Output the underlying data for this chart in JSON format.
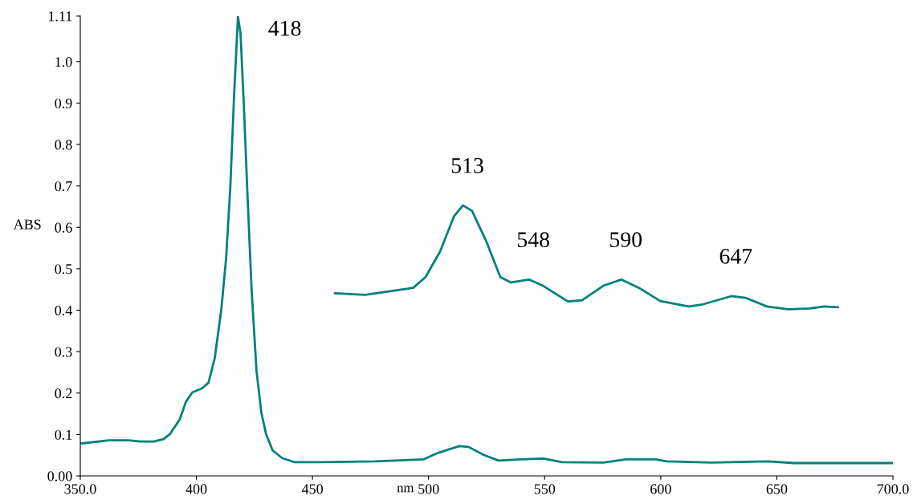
{
  "chart_data": {
    "type": "line",
    "xlabel": "nm",
    "ylabel": "ABS",
    "xlim": [
      350,
      700
    ],
    "ylim": [
      0,
      1.11
    ],
    "xticks": [
      {
        "value": 350,
        "label": "350.0"
      },
      400,
      450,
      500,
      550,
      600,
      650,
      {
        "value": 700,
        "label": "700.0"
      }
    ],
    "yticks": [
      {
        "value": 0,
        "label": "0.00"
      },
      {
        "value": 0.1,
        "label": "0.1"
      },
      {
        "value": 0.2,
        "label": "0.2"
      },
      {
        "value": 0.3,
        "label": "0.3"
      },
      {
        "value": 0.4,
        "label": "0.4"
      },
      {
        "value": 0.5,
        "label": "0.5"
      },
      {
        "value": 0.6,
        "label": "0.6"
      },
      {
        "value": 0.7,
        "label": "0.7"
      },
      {
        "value": 0.8,
        "label": "0.8"
      },
      {
        "value": 0.9,
        "label": "0.9"
      },
      {
        "value": 1.0,
        "label": "1.0"
      },
      {
        "value": 1.11,
        "label": "1.11"
      }
    ],
    "grid": false,
    "marker": "none",
    "line_style": "solid",
    "series": [
      {
        "color": "#008080",
        "x": [
          350,
          362.4,
          370.7,
          376,
          381.7,
          385.9,
          388.6,
          392.8,
          395.5,
          398.3,
          402.4,
          405.2,
          407.9,
          410.7,
          412.8,
          414.6,
          416.2,
          417.9,
          419,
          420.3,
          422,
          423.8,
          425.9,
          428,
          430,
          432.8,
          436.9,
          442.4,
          452.8,
          477,
          497.9,
          504.3,
          513.2,
          517.2,
          523.7,
          530.1,
          539.8,
          549.5,
          557.5,
          575.2,
          584.9,
          597.8,
          602.6,
          622,
          646.1,
          657.4,
          686.4,
          700
        ],
        "values": [
          0.078,
          0.086,
          0.086,
          0.083,
          0.083,
          0.089,
          0.101,
          0.136,
          0.179,
          0.202,
          0.211,
          0.225,
          0.284,
          0.4,
          0.525,
          0.696,
          0.913,
          1.108,
          1.069,
          0.913,
          0.68,
          0.447,
          0.253,
          0.152,
          0.101,
          0.062,
          0.043,
          0.033,
          0.033,
          0.035,
          0.04,
          0.056,
          0.072,
          0.07,
          0.051,
          0.037,
          0.04,
          0.042,
          0.033,
          0.032,
          0.04,
          0.04,
          0.035,
          0.032,
          0.035,
          0.031,
          0.031,
          0.031
        ]
      },
      {
        "color": "#008080",
        "x": [
          459.7,
          472.7,
          483.4,
          493.4,
          498.7,
          504.9,
          511,
          514.8,
          518.7,
          524.8,
          530.9,
          535.5,
          543.2,
          549.3,
          560,
          566.1,
          575.3,
          583,
          590.6,
          599.8,
          612,
          618.1,
          630.4,
          636.5,
          645.7,
          654.9,
          664,
          670.2,
          676.3
        ],
        "values": [
          0.441,
          0.437,
          0.446,
          0.454,
          0.48,
          0.541,
          0.627,
          0.653,
          0.64,
          0.567,
          0.48,
          0.467,
          0.474,
          0.459,
          0.421,
          0.424,
          0.459,
          0.474,
          0.454,
          0.422,
          0.409,
          0.414,
          0.434,
          0.43,
          0.409,
          0.402,
          0.404,
          0.409,
          0.407
        ]
      }
    ],
    "annotations": [
      {
        "text": "418",
        "x": 417.9,
        "y": 1.108
      },
      {
        "text": "513",
        "x": 514.8,
        "y": 0.653
      },
      {
        "text": "548",
        "x": 543.2,
        "y": 0.474
      },
      {
        "text": "590",
        "x": 583,
        "y": 0.474
      },
      {
        "text": "647",
        "x": 630.4,
        "y": 0.434
      }
    ]
  }
}
